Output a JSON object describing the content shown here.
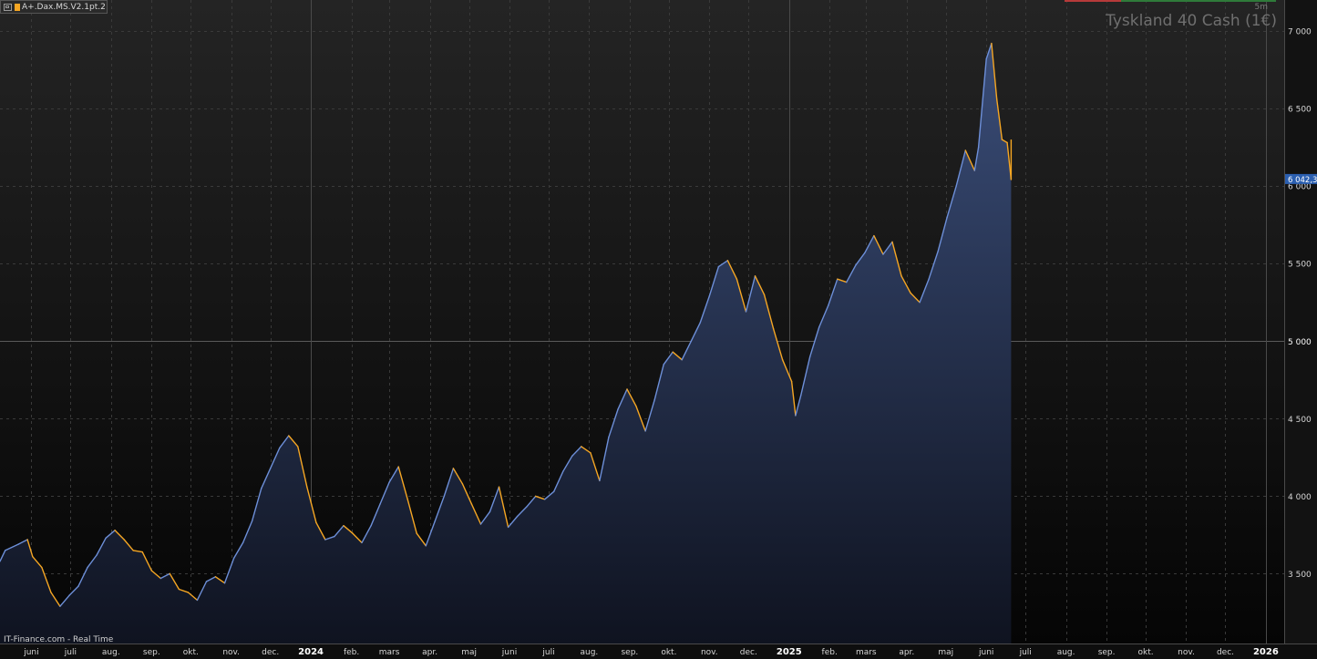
{
  "header": {
    "indicator_label": "A+.Dax.MS.V2.1pt.2",
    "timeframe": "5m",
    "instrument": "Tyskland 40 Cash (1€)"
  },
  "footer": {
    "source_label": "IT-Finance.com - Real Time"
  },
  "colors": {
    "line": "#f5a623",
    "line_up": "#6d8fd8",
    "fill_top": "#3a4d78",
    "fill_bottom": "#0f1320",
    "grid": "#3a3a3a",
    "axis_text": "#d6d6d6",
    "price_badge": "#2b5fb0"
  },
  "chart_data": {
    "type": "area",
    "title": "Tyskland 40 Cash (1€)",
    "xlabel": "",
    "ylabel": "",
    "ylim": [
      3050,
      7200
    ],
    "yticks": [
      3500,
      4000,
      4500,
      5000,
      5500,
      6000,
      6500,
      7000
    ],
    "ytick_labels": [
      "3 500",
      "4 000",
      "4 500",
      "5 000",
      "5 500",
      "6 000",
      "6 500",
      "7 000"
    ],
    "highlight_level": 5000,
    "last_value": 6042.3,
    "last_value_label": "6 042,3",
    "grid": true,
    "x_axis_start": "2023-05-08",
    "x_axis_end": "2026-01-15",
    "xticks": [
      {
        "label": "juni",
        "date": "2023-06-01",
        "major": false
      },
      {
        "label": "juli",
        "date": "2023-07-01",
        "major": false
      },
      {
        "label": "aug.",
        "date": "2023-08-01",
        "major": false
      },
      {
        "label": "sep.",
        "date": "2023-09-01",
        "major": false
      },
      {
        "label": "okt.",
        "date": "2023-10-01",
        "major": false
      },
      {
        "label": "nov.",
        "date": "2023-11-01",
        "major": false
      },
      {
        "label": "dec.",
        "date": "2023-12-01",
        "major": false
      },
      {
        "label": "2024",
        "date": "2024-01-01",
        "major": true
      },
      {
        "label": "feb.",
        "date": "2024-02-01",
        "major": false
      },
      {
        "label": "mars",
        "date": "2024-03-01",
        "major": false
      },
      {
        "label": "apr.",
        "date": "2024-04-01",
        "major": false
      },
      {
        "label": "maj",
        "date": "2024-05-01",
        "major": false
      },
      {
        "label": "juni",
        "date": "2024-06-01",
        "major": false
      },
      {
        "label": "juli",
        "date": "2024-07-01",
        "major": false
      },
      {
        "label": "aug.",
        "date": "2024-08-01",
        "major": false
      },
      {
        "label": "sep.",
        "date": "2024-09-01",
        "major": false
      },
      {
        "label": "okt.",
        "date": "2024-10-01",
        "major": false
      },
      {
        "label": "nov.",
        "date": "2024-11-01",
        "major": false
      },
      {
        "label": "dec.",
        "date": "2024-12-01",
        "major": false
      },
      {
        "label": "2025",
        "date": "2025-01-01",
        "major": true
      },
      {
        "label": "feb.",
        "date": "2025-02-01",
        "major": false
      },
      {
        "label": "mars",
        "date": "2025-03-01",
        "major": false
      },
      {
        "label": "apr.",
        "date": "2025-04-01",
        "major": false
      },
      {
        "label": "maj",
        "date": "2025-05-01",
        "major": false
      },
      {
        "label": "juni",
        "date": "2025-06-01",
        "major": false
      },
      {
        "label": "juli",
        "date": "2025-07-01",
        "major": false
      },
      {
        "label": "aug.",
        "date": "2025-08-01",
        "major": false
      },
      {
        "label": "sep.",
        "date": "2025-09-01",
        "major": false
      },
      {
        "label": "okt.",
        "date": "2025-10-01",
        "major": false
      },
      {
        "label": "nov.",
        "date": "2025-11-01",
        "major": false
      },
      {
        "label": "dec.",
        "date": "2025-12-01",
        "major": false
      },
      {
        "label": "2026",
        "date": "2026-01-01",
        "major": true
      }
    ],
    "series": [
      {
        "points": [
          [
            "2023-05-08",
            3580
          ],
          [
            "2023-05-12",
            3650
          ],
          [
            "2023-05-22",
            3690
          ],
          [
            "2023-05-29",
            3720
          ],
          [
            "2023-06-02",
            3610
          ],
          [
            "2023-06-09",
            3540
          ],
          [
            "2023-06-16",
            3380
          ],
          [
            "2023-06-23",
            3290
          ],
          [
            "2023-06-30",
            3360
          ],
          [
            "2023-07-07",
            3420
          ],
          [
            "2023-07-14",
            3540
          ],
          [
            "2023-07-21",
            3620
          ],
          [
            "2023-07-28",
            3730
          ],
          [
            "2023-08-04",
            3780
          ],
          [
            "2023-08-11",
            3720
          ],
          [
            "2023-08-18",
            3650
          ],
          [
            "2023-08-25",
            3640
          ],
          [
            "2023-09-01",
            3520
          ],
          [
            "2023-09-08",
            3470
          ],
          [
            "2023-09-15",
            3500
          ],
          [
            "2023-09-22",
            3400
          ],
          [
            "2023-09-29",
            3380
          ],
          [
            "2023-10-06",
            3330
          ],
          [
            "2023-10-13",
            3450
          ],
          [
            "2023-10-20",
            3480
          ],
          [
            "2023-10-27",
            3440
          ],
          [
            "2023-11-03",
            3600
          ],
          [
            "2023-11-10",
            3700
          ],
          [
            "2023-11-17",
            3840
          ],
          [
            "2023-11-24",
            4050
          ],
          [
            "2023-12-01",
            4180
          ],
          [
            "2023-12-08",
            4310
          ],
          [
            "2023-12-15",
            4390
          ],
          [
            "2023-12-22",
            4320
          ],
          [
            "2023-12-29",
            4060
          ],
          [
            "2024-01-05",
            3830
          ],
          [
            "2024-01-12",
            3720
          ],
          [
            "2024-01-19",
            3740
          ],
          [
            "2024-01-26",
            3810
          ],
          [
            "2024-02-02",
            3760
          ],
          [
            "2024-02-09",
            3700
          ],
          [
            "2024-02-16",
            3810
          ],
          [
            "2024-02-23",
            3950
          ],
          [
            "2024-03-01",
            4090
          ],
          [
            "2024-03-08",
            4190
          ],
          [
            "2024-03-15",
            3980
          ],
          [
            "2024-03-22",
            3760
          ],
          [
            "2024-03-29",
            3680
          ],
          [
            "2024-04-05",
            3840
          ],
          [
            "2024-04-12",
            4000
          ],
          [
            "2024-04-19",
            4180
          ],
          [
            "2024-04-26",
            4080
          ],
          [
            "2024-05-03",
            3950
          ],
          [
            "2024-05-10",
            3820
          ],
          [
            "2024-05-17",
            3900
          ],
          [
            "2024-05-24",
            4060
          ],
          [
            "2024-05-31",
            3800
          ],
          [
            "2024-06-07",
            3870
          ],
          [
            "2024-06-14",
            3930
          ],
          [
            "2024-06-21",
            4000
          ],
          [
            "2024-06-28",
            3980
          ],
          [
            "2024-07-05",
            4030
          ],
          [
            "2024-07-12",
            4160
          ],
          [
            "2024-07-19",
            4260
          ],
          [
            "2024-07-26",
            4320
          ],
          [
            "2024-08-02",
            4280
          ],
          [
            "2024-08-09",
            4100
          ],
          [
            "2024-08-16",
            4380
          ],
          [
            "2024-08-23",
            4560
          ],
          [
            "2024-08-30",
            4690
          ],
          [
            "2024-09-06",
            4580
          ],
          [
            "2024-09-13",
            4420
          ],
          [
            "2024-09-20",
            4620
          ],
          [
            "2024-09-27",
            4850
          ],
          [
            "2024-10-04",
            4930
          ],
          [
            "2024-10-11",
            4880
          ],
          [
            "2024-10-18",
            5000
          ],
          [
            "2024-10-25",
            5120
          ],
          [
            "2024-11-01",
            5290
          ],
          [
            "2024-11-08",
            5480
          ],
          [
            "2024-11-15",
            5520
          ],
          [
            "2024-11-22",
            5400
          ],
          [
            "2024-11-29",
            5190
          ],
          [
            "2024-12-06",
            5420
          ],
          [
            "2024-12-13",
            5300
          ],
          [
            "2024-12-20",
            5080
          ],
          [
            "2024-12-27",
            4880
          ],
          [
            "2025-01-03",
            4740
          ],
          [
            "2025-01-06",
            4520
          ],
          [
            "2025-01-10",
            4650
          ],
          [
            "2025-01-17",
            4900
          ],
          [
            "2025-01-24",
            5090
          ],
          [
            "2025-01-31",
            5230
          ],
          [
            "2025-02-07",
            5400
          ],
          [
            "2025-02-14",
            5380
          ],
          [
            "2025-02-21",
            5490
          ],
          [
            "2025-02-28",
            5570
          ],
          [
            "2025-03-07",
            5680
          ],
          [
            "2025-03-14",
            5560
          ],
          [
            "2025-03-21",
            5640
          ],
          [
            "2025-03-28",
            5420
          ],
          [
            "2025-04-04",
            5310
          ],
          [
            "2025-04-11",
            5250
          ],
          [
            "2025-04-18",
            5400
          ],
          [
            "2025-04-25",
            5580
          ],
          [
            "2025-05-02",
            5800
          ],
          [
            "2025-05-09",
            6000
          ],
          [
            "2025-05-16",
            6230
          ],
          [
            "2025-05-23",
            6100
          ],
          [
            "2025-05-26",
            6250
          ],
          [
            "2025-06-01",
            6820
          ],
          [
            "2025-06-05",
            6920
          ],
          [
            "2025-06-09",
            6560
          ],
          [
            "2025-06-13",
            6300
          ],
          [
            "2025-06-17",
            6280
          ],
          [
            "2025-06-20",
            6042
          ]
        ]
      }
    ]
  }
}
